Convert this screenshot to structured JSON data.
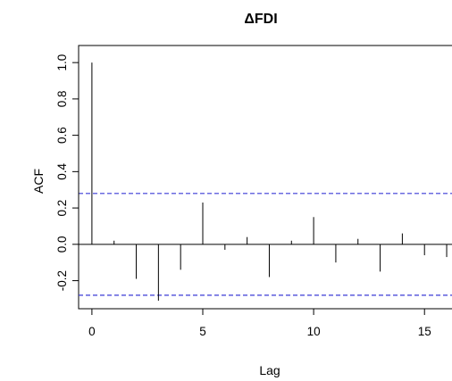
{
  "chart_data": {
    "type": "bar",
    "title": "ΔFDI",
    "xlabel": "Lag",
    "ylabel": "ACF",
    "xlim": [
      -0.6,
      16.2
    ],
    "ylim": [
      -0.32,
      1.04
    ],
    "x": [
      0,
      1,
      2,
      3,
      4,
      5,
      6,
      7,
      8,
      9,
      10,
      11,
      12,
      13,
      14,
      15,
      16
    ],
    "values": [
      1.0,
      0.02,
      -0.19,
      -0.31,
      -0.14,
      0.23,
      -0.03,
      0.04,
      -0.18,
      0.02,
      0.15,
      -0.1,
      0.03,
      -0.15,
      0.06,
      -0.06,
      -0.07
    ],
    "x_ticks": [
      0,
      5,
      10,
      15
    ],
    "y_ticks": [
      -0.2,
      0.0,
      0.2,
      0.4,
      0.6,
      0.8,
      1.0
    ],
    "x_tick_labels": [
      "0",
      "5",
      "10",
      "15"
    ],
    "y_tick_labels": [
      "-0.2",
      "0.0",
      "0.2",
      "0.4",
      "0.6",
      "0.8",
      "1.0"
    ],
    "confidence_bound": 0.28,
    "zero_line": true,
    "grid": false,
    "colors": {
      "bars": "#000000",
      "confidence": "#3a3ad6",
      "frame": "#000000"
    }
  }
}
